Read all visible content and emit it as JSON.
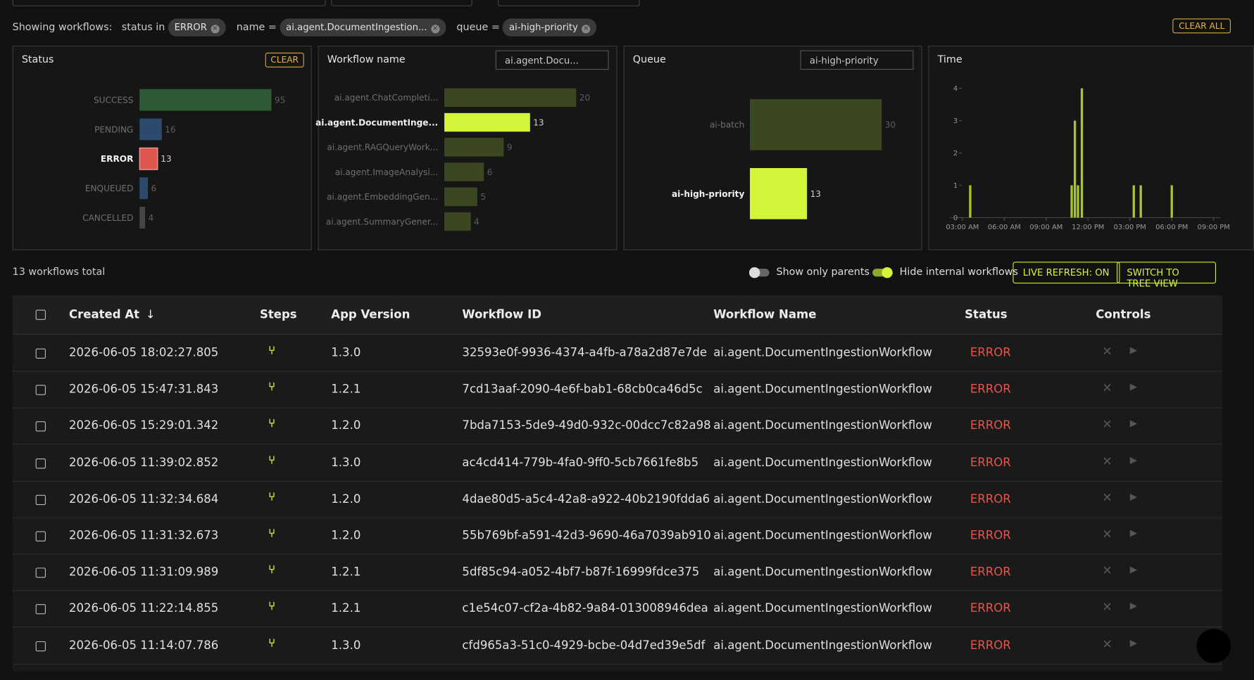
{
  "filters": {
    "label": "Showing workflows:",
    "items": [
      {
        "field": "status in",
        "value": "ERROR"
      },
      {
        "field": "name =",
        "value": "ai.agent.DocumentIngestion..."
      },
      {
        "field": "queue =",
        "value": "ai-high-priority"
      }
    ],
    "clear_all": "CLEAR ALL"
  },
  "status_panel": {
    "title": "Status",
    "clear": "CLEAR",
    "bars": [
      {
        "label": "SUCCESS",
        "value": 95,
        "color": "#2f5a36",
        "selected": false
      },
      {
        "label": "PENDING",
        "value": 16,
        "color": "#2b4a6e",
        "selected": false
      },
      {
        "label": "ERROR",
        "value": 13,
        "color": "#e0574f",
        "selected": true
      },
      {
        "label": "ENQUEUED",
        "value": 6,
        "color": "#2b4a6e",
        "selected": false
      },
      {
        "label": "CANCELLED",
        "value": 4,
        "color": "#464646",
        "selected": false
      }
    ]
  },
  "name_panel": {
    "title": "Workflow name",
    "filter": "ai.agent.Docu...",
    "bars": [
      {
        "label": "ai.agent.ChatCompleti...",
        "value": 20,
        "color": "#3b4720",
        "selected": false
      },
      {
        "label": "ai.agent.DocumentInge...",
        "value": 13,
        "color": "#d2f53a",
        "selected": true
      },
      {
        "label": "ai.agent.RAGQueryWork...",
        "value": 9,
        "color": "#3b4720",
        "selected": false
      },
      {
        "label": "ai.agent.ImageAnalysi...",
        "value": 6,
        "color": "#3b4720",
        "selected": false
      },
      {
        "label": "ai.agent.EmbeddingGen...",
        "value": 5,
        "color": "#3b4720",
        "selected": false
      },
      {
        "label": "ai.agent.SummaryGener...",
        "value": 4,
        "color": "#3b4720",
        "selected": false
      }
    ]
  },
  "queue_panel": {
    "title": "Queue",
    "filter": "ai-high-priority",
    "bars": [
      {
        "label": "ai-batch",
        "value": 30,
        "color": "#3b4720",
        "selected": false
      },
      {
        "label": "ai-high-priority",
        "value": 13,
        "color": "#d2f53a",
        "selected": true
      }
    ]
  },
  "time_panel": {
    "title": "Time",
    "type": "bar",
    "color": "#a6c72a",
    "x": [
      3.56,
      10.83,
      11.06,
      11.28,
      11.56,
      15.28,
      15.78,
      18.0
    ],
    "values": [
      1,
      1,
      3,
      1,
      4,
      1,
      1,
      1
    ],
    "xlim": [
      2.1,
      21.5
    ],
    "ylim": [
      0,
      4
    ],
    "yticks": [
      0,
      1,
      2,
      3,
      4
    ],
    "xticks": [
      {
        "value": 3,
        "label": "03:00 AM"
      },
      {
        "value": 6,
        "label": "06:00 AM"
      },
      {
        "value": 9,
        "label": "09:00 AM"
      },
      {
        "value": 12,
        "label": "12:00 PM"
      },
      {
        "value": 15,
        "label": "03:00 PM"
      },
      {
        "value": 18,
        "label": "06:00 PM"
      },
      {
        "value": 21,
        "label": "09:00 PM"
      }
    ]
  },
  "summary": "13 workflows total",
  "toggles": [
    {
      "label": "Show only parents",
      "on": false
    },
    {
      "label": "Hide internal workflows",
      "on": true
    }
  ],
  "buttons": [
    "LIVE REFRESH: ON",
    "SWITCH TO TREE VIEW"
  ],
  "table": {
    "columns": [
      "Created At",
      "Steps",
      "App Version",
      "Workflow ID",
      "Workflow Name",
      "Status",
      "Controls"
    ],
    "rows": [
      [
        "2026-06-05 18:02:27.805",
        "1.3.0",
        "32593e0f-9936-4374-a4fb-a78a2d87e7de",
        "ai.agent.DocumentIngestionWorkflow",
        "ERROR"
      ],
      [
        "2026-06-05 15:47:31.843",
        "1.2.1",
        "7cd13aaf-2090-4e6f-bab1-68cb0ca46d5c",
        "ai.agent.DocumentIngestionWorkflow",
        "ERROR"
      ],
      [
        "2026-06-05 15:29:01.342",
        "1.2.0",
        "7bda7153-5de9-49d0-932c-00dcc7c82a98",
        "ai.agent.DocumentIngestionWorkflow",
        "ERROR"
      ],
      [
        "2026-06-05 11:39:02.852",
        "1.3.0",
        "ac4cd414-779b-4fa0-9ff0-5cb7661fe8b5",
        "ai.agent.DocumentIngestionWorkflow",
        "ERROR"
      ],
      [
        "2026-06-05 11:32:34.684",
        "1.2.0",
        "4dae80d5-a5c4-42a8-a922-40b2190fdda6",
        "ai.agent.DocumentIngestionWorkflow",
        "ERROR"
      ],
      [
        "2026-06-05 11:31:32.673",
        "1.2.0",
        "55b769bf-a591-42d3-9690-46a7039ab910",
        "ai.agent.DocumentIngestionWorkflow",
        "ERROR"
      ],
      [
        "2026-06-05 11:31:09.989",
        "1.2.1",
        "5df85c94-a052-4bf7-b87f-16999fdce375",
        "ai.agent.DocumentIngestionWorkflow",
        "ERROR"
      ],
      [
        "2026-06-05 11:22:14.855",
        "1.2.1",
        "c1e54c07-cf2a-4b82-9a84-013008946dea",
        "ai.agent.DocumentIngestionWorkflow",
        "ERROR"
      ],
      [
        "2026-06-05 11:14:07.786",
        "1.3.0",
        "cfd965a3-51c0-4929-bcbe-04d7ed39e5df",
        "ai.agent.DocumentIngestionWorkflow",
        "ERROR"
      ]
    ]
  }
}
